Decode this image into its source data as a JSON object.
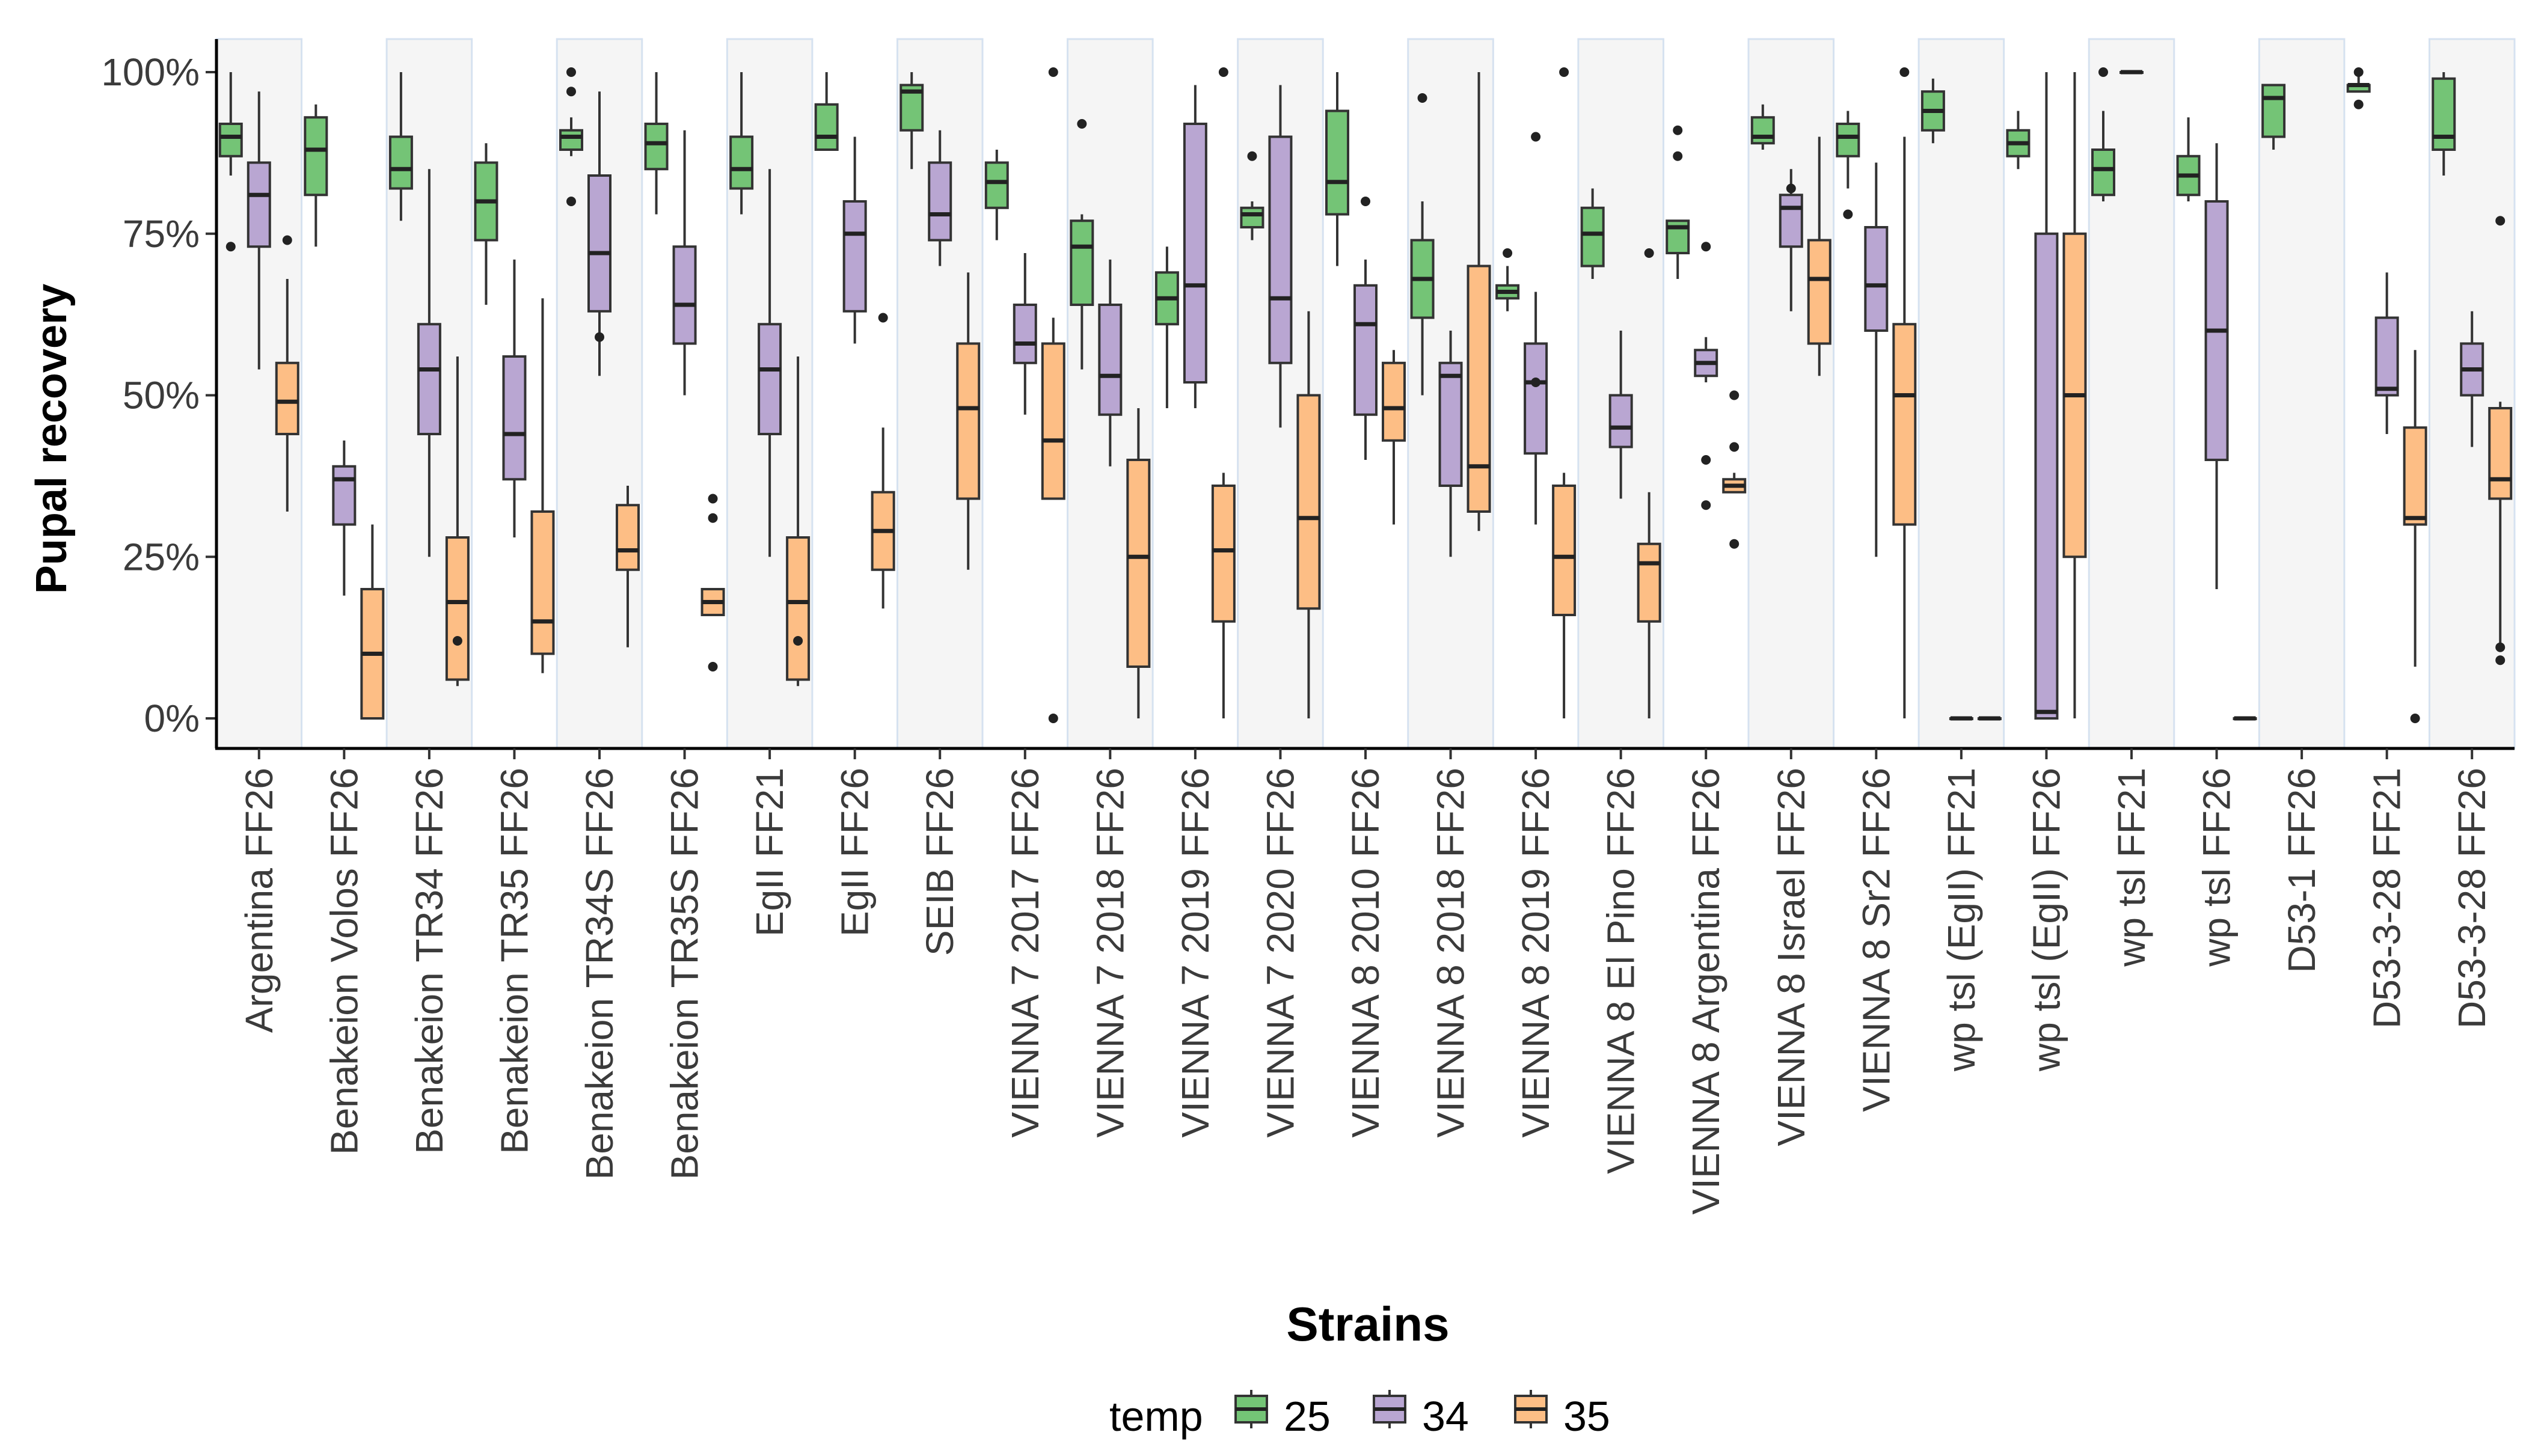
{
  "chart_data": {
    "type": "boxplot",
    "title": "",
    "xlabel": "Strains",
    "ylabel": "Pupal recovery",
    "ylim": [
      0,
      1
    ],
    "yticks": [
      "0%",
      "25%",
      "50%",
      "75%",
      "100%"
    ],
    "yticks_values": [
      0,
      0.25,
      0.5,
      0.75,
      1
    ],
    "legend": {
      "title": "temp",
      "position": "bottom",
      "entries": [
        {
          "label": "25",
          "color": "#74C476"
        },
        {
          "label": "34",
          "color": "#B9A6D2"
        },
        {
          "label": "35",
          "color": "#FDBE85"
        }
      ]
    },
    "band_fill": "#f5f5f5",
    "band_stroke": "#d6e2f0",
    "categories": [
      "Argentina FF26",
      "Benakeion Volos FF26",
      "Benakeion TR34 FF26",
      "Benakeion TR35 FF26",
      "Benakeion TR34S FF26",
      "Benakeion TR35S FF26",
      "EgII FF21",
      "EgII FF26",
      "SEIB FF26",
      "VIENNA 7 2017 FF26",
      "VIENNA 7 2018 FF26",
      "VIENNA 7 2019 FF26",
      "VIENNA 7 2020 FF26",
      "VIENNA 8 2010 FF26",
      "VIENNA 8 2018 FF26",
      "VIENNA 8 2019 FF26",
      "VIENNA 8 El Pino FF26",
      "VIENNA 8 Argentina FF26",
      "VIENNA 8 Israel FF26",
      "VIENNA 8 Sr2 FF26",
      "wp tsl (EgII) FF21",
      "wp tsl (EgII) FF26",
      "wp tsl FF21",
      "wp tsl FF26",
      "D53-1 FF26",
      "D53-3-28 FF21",
      "D53-3-28 FF26"
    ],
    "series": [
      {
        "name": "25",
        "color": "#74C476",
        "boxes": [
          [
            0.84,
            0.87,
            0.9,
            0.92,
            1.0,
            [
              0.73
            ]
          ],
          [
            0.73,
            0.81,
            0.88,
            0.93,
            0.95,
            []
          ],
          [
            0.77,
            0.82,
            0.85,
            0.9,
            1.0,
            []
          ],
          [
            0.64,
            0.74,
            0.8,
            0.86,
            0.89,
            []
          ],
          [
            0.87,
            0.88,
            0.9,
            0.91,
            0.93,
            [
              1.0,
              0.97,
              0.8
            ]
          ],
          [
            0.78,
            0.85,
            0.89,
            0.92,
            1.0,
            []
          ],
          [
            0.78,
            0.82,
            0.85,
            0.9,
            1.0,
            []
          ],
          [
            0.88,
            0.88,
            0.9,
            0.95,
            1.0,
            []
          ],
          [
            0.85,
            0.91,
            0.97,
            0.98,
            1.0,
            []
          ],
          [
            0.74,
            0.79,
            0.83,
            0.86,
            0.88,
            []
          ],
          [
            0.54,
            0.64,
            0.73,
            0.77,
            0.78,
            [
              0.92
            ]
          ],
          [
            0.48,
            0.61,
            0.65,
            0.69,
            0.73,
            []
          ],
          [
            0.74,
            0.76,
            0.78,
            0.79,
            0.8,
            [
              0.87
            ]
          ],
          [
            0.7,
            0.78,
            0.83,
            0.94,
            1.0,
            []
          ],
          [
            0.5,
            0.62,
            0.68,
            0.74,
            0.8,
            [
              0.96
            ]
          ],
          [
            0.63,
            0.65,
            0.66,
            0.67,
            0.7,
            [
              0.72
            ]
          ],
          [
            0.68,
            0.7,
            0.75,
            0.79,
            0.82,
            []
          ],
          [
            0.68,
            0.72,
            0.76,
            0.77,
            0.77,
            [
              0.91,
              0.87
            ]
          ],
          [
            0.88,
            0.89,
            0.9,
            0.93,
            0.95,
            []
          ],
          [
            0.82,
            0.87,
            0.9,
            0.92,
            0.94,
            [
              0.78
            ]
          ],
          [
            0.89,
            0.91,
            0.94,
            0.97,
            0.99,
            []
          ],
          [
            0.85,
            0.87,
            0.89,
            0.91,
            0.94,
            []
          ],
          [
            0.8,
            0.81,
            0.85,
            0.88,
            0.94,
            [
              1.0
            ]
          ],
          [
            0.8,
            0.81,
            0.84,
            0.87,
            0.93,
            []
          ],
          [
            0.88,
            0.9,
            0.96,
            0.98,
            0.98,
            []
          ],
          [
            0.97,
            0.97,
            0.98,
            0.98,
            1.0,
            [
              1.0,
              0.95
            ]
          ],
          [
            0.84,
            0.88,
            0.9,
            0.99,
            1.0,
            []
          ]
        ]
      },
      {
        "name": "34",
        "color": "#B9A6D2",
        "boxes": [
          [
            0.54,
            0.73,
            0.81,
            0.86,
            0.97,
            []
          ],
          [
            0.19,
            0.3,
            0.37,
            0.39,
            0.43,
            []
          ],
          [
            0.25,
            0.44,
            0.54,
            0.61,
            0.85,
            []
          ],
          [
            0.28,
            0.37,
            0.44,
            0.56,
            0.71,
            []
          ],
          [
            0.53,
            0.63,
            0.72,
            0.84,
            0.97,
            [
              0.59
            ]
          ],
          [
            0.5,
            0.58,
            0.64,
            0.73,
            0.91,
            []
          ],
          [
            0.25,
            0.44,
            0.54,
            0.61,
            0.85,
            []
          ],
          [
            0.58,
            0.63,
            0.75,
            0.8,
            0.9,
            []
          ],
          [
            0.7,
            0.74,
            0.78,
            0.86,
            0.91,
            []
          ],
          [
            0.47,
            0.55,
            0.58,
            0.64,
            0.72,
            []
          ],
          [
            0.39,
            0.47,
            0.53,
            0.64,
            0.71,
            []
          ],
          [
            0.48,
            0.52,
            0.67,
            0.92,
            0.98,
            []
          ],
          [
            0.45,
            0.55,
            0.65,
            0.9,
            0.98,
            []
          ],
          [
            0.4,
            0.47,
            0.61,
            0.67,
            0.71,
            [
              0.8
            ]
          ],
          [
            0.25,
            0.36,
            0.53,
            0.55,
            0.6,
            []
          ],
          [
            0.3,
            0.41,
            0.52,
            0.58,
            0.66,
            [
              0.9,
              0.52
            ]
          ],
          [
            0.34,
            0.42,
            0.45,
            0.5,
            0.6,
            []
          ],
          [
            0.52,
            0.53,
            0.55,
            0.57,
            0.59,
            [
              0.73,
              0.4,
              0.33
            ]
          ],
          [
            0.63,
            0.73,
            0.79,
            0.81,
            0.85,
            [
              0.82
            ]
          ],
          [
            0.25,
            0.6,
            0.67,
            0.76,
            0.86,
            []
          ],
          [
            0,
            0,
            0,
            0,
            0,
            []
          ],
          [
            0.0,
            0.0,
            0.01,
            0.75,
            1.0,
            []
          ],
          [
            1.0,
            1.0,
            1.0,
            1.0,
            1.0,
            []
          ],
          [
            0.2,
            0.4,
            0.6,
            0.8,
            0.89,
            []
          ],
          [
            null,
            null,
            null,
            null,
            null,
            []
          ],
          [
            0.44,
            0.5,
            0.51,
            0.62,
            0.69,
            []
          ],
          [
            0.42,
            0.5,
            0.54,
            0.58,
            0.63,
            []
          ]
        ]
      },
      {
        "name": "35",
        "color": "#FDBE85",
        "boxes": [
          [
            0.32,
            0.44,
            0.49,
            0.55,
            0.68,
            [
              0.74
            ]
          ],
          [
            0.0,
            0.0,
            0.1,
            0.2,
            0.3,
            []
          ],
          [
            0.05,
            0.06,
            0.18,
            0.28,
            0.56,
            [
              0.12
            ]
          ],
          [
            0.07,
            0.1,
            0.15,
            0.32,
            0.65,
            []
          ],
          [
            0.11,
            0.23,
            0.26,
            0.33,
            0.36,
            []
          ],
          [
            0.16,
            0.16,
            0.18,
            0.2,
            0.2,
            [
              0.34,
              0.31,
              0.08
            ]
          ],
          [
            0.05,
            0.06,
            0.18,
            0.28,
            0.56,
            [
              0.12
            ]
          ],
          [
            0.17,
            0.23,
            0.29,
            0.35,
            0.45,
            [
              0.62
            ]
          ],
          [
            0.23,
            0.34,
            0.48,
            0.58,
            0.69,
            []
          ],
          [
            0.34,
            0.34,
            0.43,
            0.58,
            0.62,
            [
              0.0,
              1.0
            ]
          ],
          [
            0.0,
            0.08,
            0.25,
            0.4,
            0.48,
            []
          ],
          [
            0.0,
            0.15,
            0.26,
            0.36,
            0.38,
            [
              1.0
            ]
          ],
          [
            0.0,
            0.17,
            0.31,
            0.5,
            0.63,
            []
          ],
          [
            0.3,
            0.43,
            0.48,
            0.55,
            0.57,
            []
          ],
          [
            0.29,
            0.32,
            0.39,
            0.7,
            1.0,
            []
          ],
          [
            0.0,
            0.16,
            0.25,
            0.36,
            0.38,
            [
              1.0
            ]
          ],
          [
            0.0,
            0.15,
            0.24,
            0.27,
            0.35,
            [
              0.72
            ]
          ],
          [
            0.35,
            0.35,
            0.36,
            0.37,
            0.38,
            [
              0.5,
              0.42,
              0.27
            ]
          ],
          [
            0.53,
            0.58,
            0.68,
            0.74,
            0.9,
            []
          ],
          [
            0.0,
            0.3,
            0.5,
            0.61,
            0.9,
            [
              1.0
            ]
          ],
          [
            0,
            0,
            0,
            0,
            0,
            []
          ],
          [
            0.0,
            0.25,
            0.5,
            0.75,
            1.0,
            []
          ],
          [
            null,
            null,
            null,
            null,
            null,
            []
          ],
          [
            0,
            0,
            0,
            0,
            0,
            []
          ],
          [
            null,
            null,
            null,
            null,
            null,
            []
          ],
          [
            0.08,
            0.3,
            0.31,
            0.45,
            0.57,
            [
              0.0
            ]
          ],
          [
            0.11,
            0.34,
            0.37,
            0.48,
            0.49,
            [
              0.77,
              0.11,
              0.09
            ]
          ]
        ]
      }
    ]
  }
}
